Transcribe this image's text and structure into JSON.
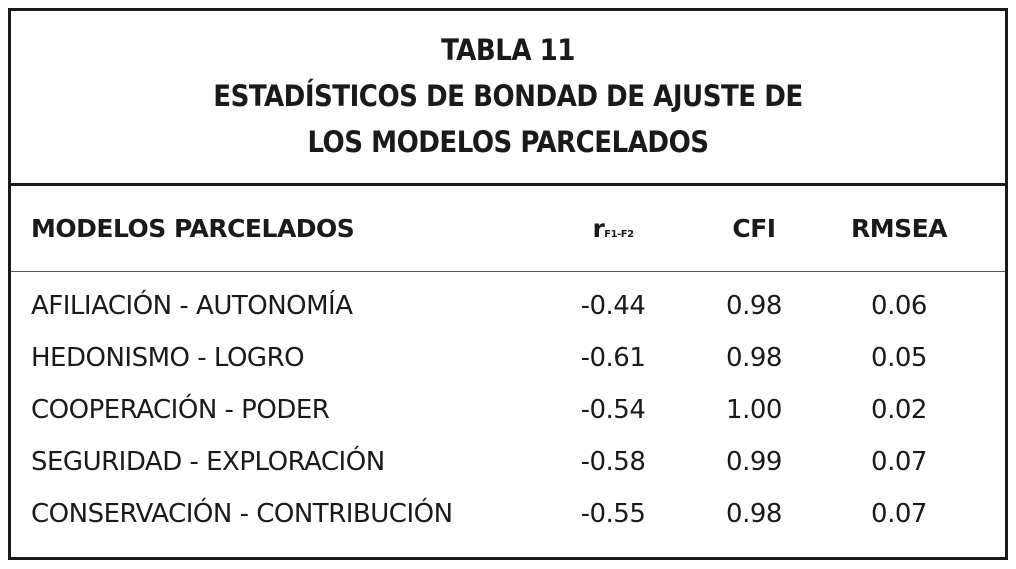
{
  "title": [
    "TABLA 11",
    "ESTADÍSTICOS DE BONDAD DE AJUSTE DE",
    "LOS MODELOS PARCELADOS"
  ],
  "table": {
    "header": {
      "model": "MODELOS PARCELADOS",
      "r": "r",
      "r_sub": "F1-F2",
      "cfi": "CFI",
      "rmsea": "RMSEA"
    },
    "rows": [
      [
        "AFILIACIÓN - AUTONOMÍA",
        "-0.44",
        "0.98",
        "0.06"
      ],
      [
        "HEDONISMO - LOGRO",
        "-0.61",
        "0.98",
        "0.05"
      ],
      [
        "COOPERACIÓN - PODER",
        "-0.54",
        "1.00",
        "0.02"
      ],
      [
        "SEGURIDAD - EXPLORACIÓN",
        "-0.58",
        "0.99",
        "0.07"
      ],
      [
        "CONSERVACIÓN - CONTRIBUCIÓN",
        "-0.55",
        "0.98",
        "0.07"
      ]
    ]
  }
}
